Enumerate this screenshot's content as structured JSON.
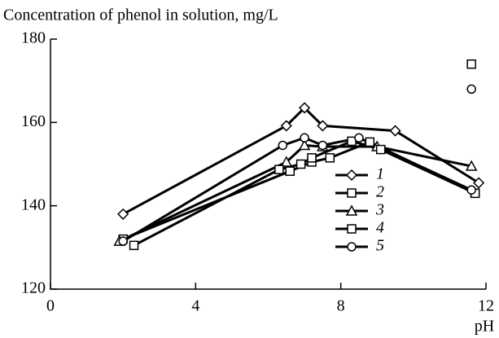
{
  "chart_data": {
    "type": "line",
    "y_label": "Concentration of phenol in solution, mg/L",
    "x_label": "pH",
    "xlim": [
      0,
      12
    ],
    "xticks": [
      0,
      4,
      8,
      12
    ],
    "ylim": [
      120,
      180
    ],
    "yticks": [
      120,
      140,
      160,
      180
    ],
    "grid": false,
    "legend": "right",
    "color": "#000000",
    "series": [
      {
        "name": "1",
        "marker": "diamond",
        "x": [
          2,
          6.5,
          7,
          7.5,
          9.5,
          11.8
        ],
        "values": [
          138,
          159.2,
          163.5,
          159.2,
          158,
          145.5
        ]
      },
      {
        "name": "2",
        "marker": "square",
        "x": [
          2,
          6.6,
          7.2,
          7.7,
          8.8,
          11.7
        ],
        "values": [
          132,
          148.3,
          150.5,
          151.5,
          155.3,
          143
        ]
      },
      {
        "name": "3",
        "marker": "triangle",
        "x": [
          1.9,
          6.5,
          7,
          7.5,
          9,
          11.6
        ],
        "values": [
          131.5,
          150.5,
          154.5,
          154.2,
          154.2,
          149.5
        ]
      },
      {
        "name": "4",
        "marker": "square",
        "x": [
          2.3,
          6.3,
          6.9,
          7.2,
          8.3,
          9.1,
          11.7
        ],
        "values": [
          130.5,
          148.7,
          150,
          151.5,
          155.5,
          153.5,
          143
        ]
      },
      {
        "name": "5",
        "marker": "circle",
        "x": [
          2,
          6.4,
          7,
          7.5,
          8.5,
          11.6
        ],
        "values": [
          131.5,
          154.5,
          156.3,
          154.5,
          156.3,
          143.8
        ]
      }
    ],
    "points": [
      {
        "marker": "square",
        "x": 11.6,
        "y": 174
      },
      {
        "marker": "circle",
        "x": 11.6,
        "y": 168
      }
    ]
  }
}
